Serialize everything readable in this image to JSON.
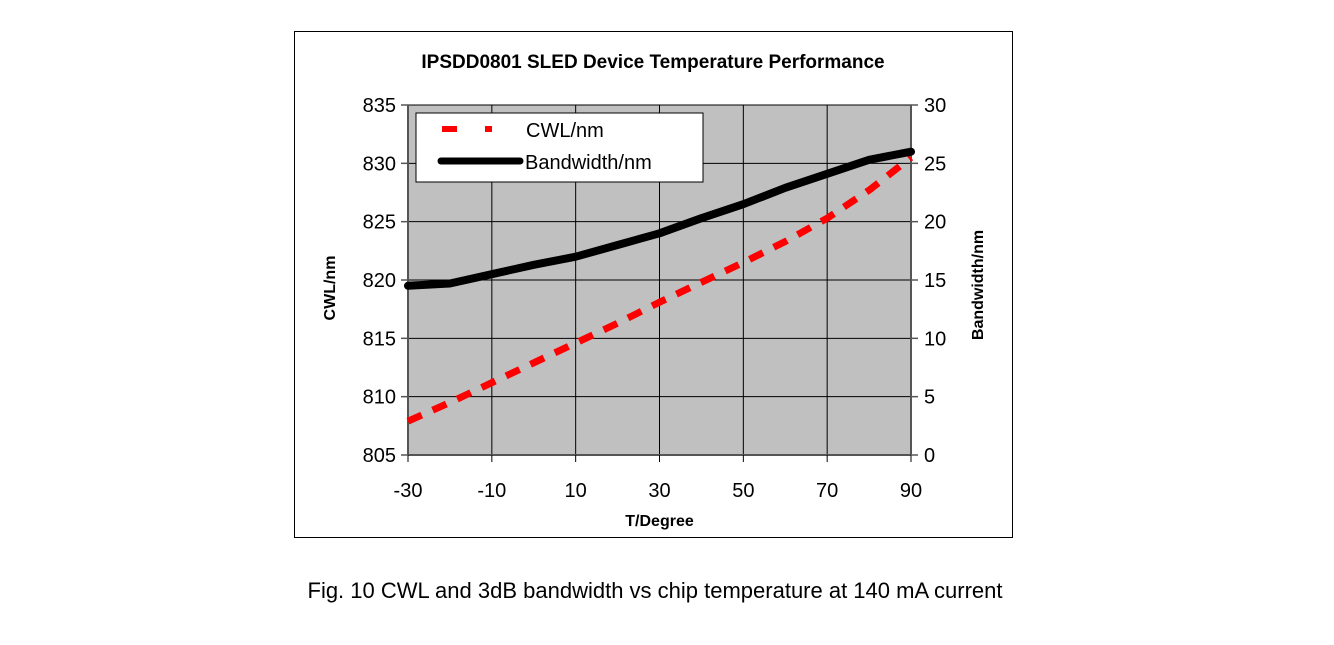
{
  "caption": "Fig. 10 CWL and 3dB bandwidth vs chip temperature at 140 mA current",
  "chart_data": {
    "type": "line",
    "title": "IPSDD0801 SLED Device Temperature Performance",
    "xlabel": "T/Degree",
    "ylabel": "CWL/nm",
    "y2label": "Bandwidth/nm",
    "xlim": [
      -30,
      90
    ],
    "ylim": [
      805,
      835
    ],
    "y2lim": [
      0,
      30
    ],
    "xticks": [
      -30,
      -10,
      10,
      30,
      50,
      70,
      90
    ],
    "xtick_labels": [
      "-30",
      "-10",
      "10",
      "30",
      "50",
      "70",
      "90"
    ],
    "yticks": [
      805,
      810,
      815,
      820,
      825,
      830,
      835
    ],
    "ytick_labels": [
      "805",
      "810",
      "815",
      "820",
      "825",
      "830",
      "835"
    ],
    "y2ticks": [
      0,
      5,
      10,
      15,
      20,
      25,
      30
    ],
    "y2tick_labels": [
      "0",
      "5",
      "10",
      "15",
      "20",
      "25",
      "30"
    ],
    "grid": true,
    "legend": "top-left",
    "series": [
      {
        "name": "CWL/nm",
        "axis": "left",
        "color": "#ff0000",
        "style": "dashed",
        "x": [
          -30,
          -20,
          -10,
          0,
          10,
          20,
          30,
          40,
          50,
          60,
          70,
          80,
          90
        ],
        "values": [
          807.9,
          809.5,
          811.2,
          812.9,
          814.6,
          816.3,
          818.1,
          819.8,
          821.5,
          823.3,
          825.3,
          827.7,
          830.5
        ]
      },
      {
        "name": "Bandwidth/nm",
        "axis": "right",
        "color": "#000000",
        "style": "solid",
        "x": [
          -30,
          -20,
          -10,
          0,
          10,
          20,
          30,
          40,
          50,
          60,
          70,
          80,
          90
        ],
        "values": [
          14.5,
          14.7,
          15.5,
          16.3,
          17.0,
          18.0,
          19.0,
          20.3,
          21.5,
          22.9,
          24.1,
          25.3,
          26.0
        ]
      }
    ],
    "colors": {
      "plot_background": "#c0c0c0",
      "grid": "#000000"
    }
  }
}
